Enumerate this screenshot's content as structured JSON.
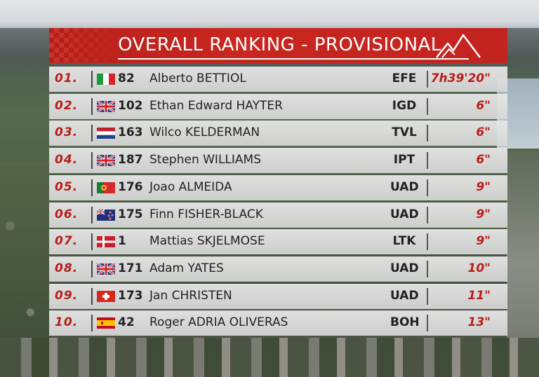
{
  "header": {
    "title": "OVERALL RANKING - PROVISIONAL",
    "logo_icon": "mountain-logo-icon"
  },
  "rows": [
    {
      "position": "01.",
      "flag": "italy-flag-icon",
      "bib": "82",
      "name": "Alberto BETTIOL",
      "team": "EFE",
      "time": "7h39'20\""
    },
    {
      "position": "02.",
      "flag": "uk-flag-icon",
      "bib": "102",
      "name": "Ethan Edward HAYTER",
      "team": "IGD",
      "time": "6\""
    },
    {
      "position": "03.",
      "flag": "netherlands-flag-icon",
      "bib": "163",
      "name": "Wilco KELDERMAN",
      "team": "TVL",
      "time": "6\""
    },
    {
      "position": "04.",
      "flag": "uk-flag-icon",
      "bib": "187",
      "name": "Stephen WILLIAMS",
      "team": "IPT",
      "time": "6\""
    },
    {
      "position": "05.",
      "flag": "portugal-flag-icon",
      "bib": "176",
      "name": "Joao ALMEIDA",
      "team": "UAD",
      "time": "9\""
    },
    {
      "position": "06.",
      "flag": "new-zealand-flag-icon",
      "bib": "175",
      "name": "Finn FISHER-BLACK",
      "team": "UAD",
      "time": "9\""
    },
    {
      "position": "07.",
      "flag": "denmark-flag-icon",
      "bib": "1",
      "name": "Mattias SKJELMOSE",
      "team": "LTK",
      "time": "9\""
    },
    {
      "position": "08.",
      "flag": "uk-flag-icon",
      "bib": "171",
      "name": "Adam YATES",
      "team": "UAD",
      "time": "10\""
    },
    {
      "position": "09.",
      "flag": "switzerland-flag-icon",
      "bib": "173",
      "name": "Jan CHRISTEN",
      "team": "UAD",
      "time": "11\""
    },
    {
      "position": "10.",
      "flag": "spain-flag-icon",
      "bib": "42",
      "name": "Roger ADRIA OLIVERAS",
      "team": "BOH",
      "time": "13\""
    }
  ],
  "colors": {
    "accent": "#c42420",
    "row_bg": "#dcdcdc",
    "text": "#222222"
  }
}
